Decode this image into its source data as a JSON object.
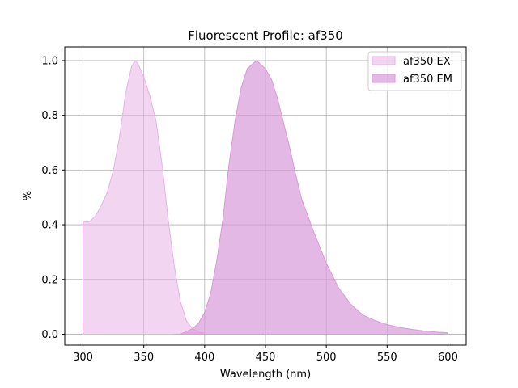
{
  "chart_data": {
    "type": "area",
    "title": "Fluorescent Profile: af350",
    "xlabel": "Wavelength (nm)",
    "ylabel": "%",
    "xlim": [
      285,
      615
    ],
    "ylim": [
      -0.04,
      1.05
    ],
    "xticks": [
      300,
      350,
      400,
      450,
      500,
      550,
      600
    ],
    "yticks": [
      0.0,
      0.2,
      0.4,
      0.6,
      0.8,
      1.0
    ],
    "xtick_labels": [
      "300",
      "350",
      "400",
      "450",
      "500",
      "550",
      "600"
    ],
    "ytick_labels": [
      "0.0",
      "0.2",
      "0.4",
      "0.6",
      "0.8",
      "1.0"
    ],
    "grid": true,
    "legend_position": "top-right",
    "series": [
      {
        "name": "af350 EX",
        "color": "#e6b3e6",
        "x": [
          300,
          305,
          310,
          315,
          320,
          325,
          330,
          335,
          340,
          343,
          345,
          350,
          355,
          360,
          365,
          370,
          375,
          380,
          385,
          390,
          395,
          400
        ],
        "y": [
          0.41,
          0.41,
          0.43,
          0.47,
          0.52,
          0.6,
          0.72,
          0.88,
          0.98,
          1.0,
          0.99,
          0.94,
          0.87,
          0.78,
          0.62,
          0.42,
          0.25,
          0.12,
          0.05,
          0.02,
          0.01,
          0.0
        ]
      },
      {
        "name": "af350 EM",
        "color": "#d99ad9",
        "x": [
          375,
          380,
          385,
          390,
          395,
          400,
          405,
          410,
          415,
          420,
          425,
          430,
          435,
          440,
          443,
          445,
          450,
          455,
          460,
          465,
          470,
          475,
          480,
          490,
          500,
          510,
          520,
          530,
          540,
          550,
          560,
          570,
          580,
          590,
          600
        ],
        "y": [
          0.0,
          0.0,
          0.01,
          0.02,
          0.04,
          0.08,
          0.15,
          0.27,
          0.42,
          0.62,
          0.78,
          0.9,
          0.97,
          0.99,
          1.0,
          0.99,
          0.97,
          0.93,
          0.86,
          0.77,
          0.68,
          0.58,
          0.49,
          0.37,
          0.26,
          0.17,
          0.11,
          0.07,
          0.05,
          0.035,
          0.025,
          0.018,
          0.012,
          0.008,
          0.005
        ]
      }
    ]
  }
}
